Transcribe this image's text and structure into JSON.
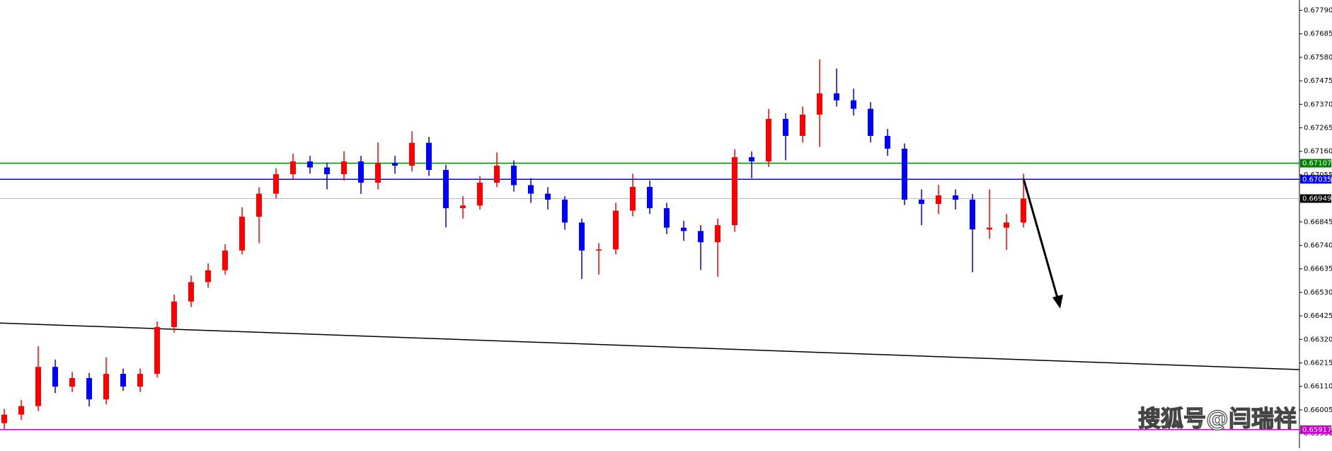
{
  "chart_data": {
    "type": "candlestick",
    "up_color": "#ff0000",
    "down_color": "#0000ff",
    "open": [
      0.65946,
      0.65984,
      0.66022,
      0.66197,
      0.66109,
      0.66147,
      0.66052,
      0.66166,
      0.66109,
      0.66166,
      0.66375,
      0.66489,
      0.66576,
      0.66629,
      0.66717,
      0.66868,
      0.66971,
      0.67058,
      0.67115,
      0.67088,
      0.67058,
      0.67115,
      0.6702,
      0.67107,
      0.67096,
      0.67198,
      0.67077,
      0.66906,
      0.66918,
      0.6702,
      0.67096,
      0.67009,
      0.66971,
      0.66944,
      0.66842,
      0.66717,
      0.66722,
      0.66895,
      0.67001,
      0.66906,
      0.66819,
      0.66804,
      0.66754,
      0.6683,
      0.67134,
      0.67115,
      0.67305,
      0.67229,
      0.67324,
      0.67419,
      0.67388,
      0.6735,
      0.67229,
      0.67172,
      0.66944,
      0.66925,
      0.66963,
      0.66944,
      0.66811,
      0.66819,
      0.66842
    ],
    "high": [
      0.6601,
      0.6605,
      0.6629,
      0.6623,
      0.66175,
      0.6617,
      0.6624,
      0.6619,
      0.6619,
      0.664,
      0.6652,
      0.66605,
      0.6666,
      0.66745,
      0.6691,
      0.67,
      0.67085,
      0.6715,
      0.6714,
      0.6711,
      0.6716,
      0.6714,
      0.672,
      0.6714,
      0.6725,
      0.67225,
      0.671,
      0.6696,
      0.6705,
      0.67155,
      0.6712,
      0.6704,
      0.67,
      0.6696,
      0.6686,
      0.6675,
      0.6693,
      0.6706,
      0.6703,
      0.6693,
      0.6685,
      0.6683,
      0.6686,
      0.6717,
      0.6716,
      0.6735,
      0.6733,
      0.6736,
      0.6757,
      0.6753,
      0.6744,
      0.6738,
      0.6726,
      0.67195,
      0.6699,
      0.6701,
      0.6699,
      0.6697,
      0.6699,
      0.6688,
      0.6706
    ],
    "low": [
      0.6592,
      0.6596,
      0.66,
      0.6608,
      0.66085,
      0.6602,
      0.6603,
      0.6609,
      0.66085,
      0.6615,
      0.6635,
      0.66465,
      0.6655,
      0.6661,
      0.667,
      0.6675,
      0.6695,
      0.67035,
      0.6706,
      0.6699,
      0.6703,
      0.6697,
      0.6699,
      0.6706,
      0.6707,
      0.6705,
      0.6682,
      0.6686,
      0.669,
      0.67,
      0.6698,
      0.6693,
      0.669,
      0.6681,
      0.6659,
      0.6661,
      0.667,
      0.6687,
      0.6688,
      0.6679,
      0.6676,
      0.6663,
      0.666,
      0.668,
      0.6704,
      0.6709,
      0.6712,
      0.672,
      0.6718,
      0.6736,
      0.6732,
      0.672,
      0.6714,
      0.6692,
      0.6683,
      0.6688,
      0.669,
      0.6662,
      0.6677,
      0.6672,
      0.6682
    ],
    "close": [
      0.65984,
      0.66022,
      0.66197,
      0.66109,
      0.66147,
      0.66052,
      0.66166,
      0.66109,
      0.66166,
      0.66375,
      0.66489,
      0.66576,
      0.66629,
      0.66717,
      0.66868,
      0.66971,
      0.67058,
      0.67115,
      0.67088,
      0.67058,
      0.67115,
      0.6702,
      0.67107,
      0.67096,
      0.67198,
      0.67077,
      0.66906,
      0.66918,
      0.6702,
      0.67096,
      0.67009,
      0.66971,
      0.66944,
      0.66842,
      0.66717,
      0.66722,
      0.66895,
      0.67001,
      0.66906,
      0.66819,
      0.66804,
      0.66754,
      0.6683,
      0.67134,
      0.67115,
      0.67305,
      0.67229,
      0.67324,
      0.67419,
      0.67388,
      0.6735,
      0.67229,
      0.67172,
      0.66944,
      0.66925,
      0.66963,
      0.66944,
      0.66811,
      0.66819,
      0.66842,
      0.66949
    ],
    "ylim": [
      0.65834,
      0.67836
    ],
    "yticks": [
      {
        "value": 0.6779,
        "label": "0.67790"
      },
      0.67685,
      {
        "value": 0.6758,
        "label": "0.67580"
      },
      0.67475,
      {
        "value": 0.6737,
        "label": "0.67370"
      },
      0.67265,
      {
        "value": 0.6716,
        "label": "0.67160"
      },
      0.67055,
      0.66845,
      {
        "value": 0.6674,
        "label": "0.66740"
      },
      0.66635,
      {
        "value": 0.6653,
        "label": "0.66530"
      },
      0.66425,
      {
        "value": 0.6632,
        "label": "0.66320"
      },
      0.66215,
      {
        "value": 0.6611,
        "label": "0.66110"
      },
      0.66005,
      {
        "value": 0.659,
        "label": "0.65900"
      }
    ],
    "levels": [
      {
        "value": 0.67107,
        "color": "#008000"
      },
      {
        "value": 0.67035,
        "color": "#0000ff"
      },
      {
        "value": 0.66949,
        "color": "#000000"
      },
      {
        "value": 0.65917,
        "color": "#cc00cc"
      }
    ],
    "trendline": {
      "start": 0.66393,
      "end": 0.66185
    },
    "watermark": "搜狐号@闫瑞祥"
  }
}
